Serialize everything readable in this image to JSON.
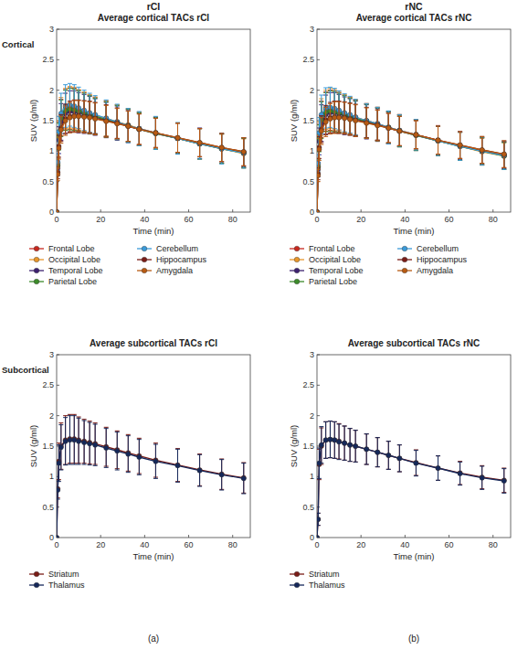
{
  "column_labels": [
    "rCI",
    "rNC"
  ],
  "row_labels": [
    "Cortical",
    "Subcortical"
  ],
  "panel_labels": [
    "(a)",
    "(b)"
  ],
  "chart_data": [
    {
      "type": "line",
      "title": "Average cortical TACs rCI",
      "x_label": "Time (min)",
      "y_label": "SUV (g/ml)",
      "xlim": [
        0,
        88
      ],
      "xticks": [
        0,
        20,
        40,
        60,
        80
      ],
      "ylim": [
        0,
        3
      ],
      "yticks": [
        0,
        0.5,
        1,
        1.5,
        2,
        2.5,
        3
      ],
      "grid": false,
      "legend": "bottom",
      "marker": "circle",
      "x": [
        0,
        0.5,
        1,
        2,
        4,
        6,
        8,
        10,
        12.5,
        15,
        17.5,
        22.5,
        27.5,
        32.5,
        37.5,
        45,
        55,
        65,
        75,
        85
      ],
      "series": [
        {
          "name": "Frontal Lobe",
          "color": "#c8281e",
          "values": [
            0,
            0.78,
            1.25,
            1.55,
            1.68,
            1.7,
            1.69,
            1.67,
            1.64,
            1.61,
            1.58,
            1.53,
            1.48,
            1.42,
            1.37,
            1.3,
            1.21,
            1.12,
            1.04,
            0.97
          ],
          "errors": [
            0,
            0.12,
            0.22,
            0.3,
            0.33,
            0.34,
            0.34,
            0.33,
            0.32,
            0.31,
            0.3,
            0.29,
            0.28,
            0.27,
            0.27,
            0.26,
            0.25,
            0.25,
            0.24,
            0.24
          ]
        },
        {
          "name": "Occipital Lobe",
          "color": "#e8962a",
          "values": [
            0,
            0.8,
            1.28,
            1.58,
            1.7,
            1.72,
            1.71,
            1.68,
            1.65,
            1.62,
            1.59,
            1.54,
            1.48,
            1.43,
            1.37,
            1.3,
            1.21,
            1.12,
            1.04,
            0.96
          ],
          "errors": [
            0,
            0.12,
            0.22,
            0.3,
            0.33,
            0.34,
            0.34,
            0.33,
            0.32,
            0.31,
            0.3,
            0.29,
            0.28,
            0.27,
            0.27,
            0.26,
            0.25,
            0.25,
            0.24,
            0.24
          ]
        },
        {
          "name": "Temporal Lobe",
          "color": "#3d2170",
          "values": [
            0,
            0.72,
            1.18,
            1.48,
            1.62,
            1.65,
            1.65,
            1.63,
            1.61,
            1.59,
            1.56,
            1.51,
            1.46,
            1.41,
            1.36,
            1.29,
            1.21,
            1.13,
            1.05,
            0.98
          ],
          "errors": [
            0,
            0.12,
            0.22,
            0.3,
            0.33,
            0.34,
            0.34,
            0.33,
            0.32,
            0.31,
            0.3,
            0.29,
            0.28,
            0.27,
            0.27,
            0.26,
            0.25,
            0.25,
            0.24,
            0.24
          ]
        },
        {
          "name": "Parietal Lobe",
          "color": "#3c8c2a",
          "values": [
            0,
            0.76,
            1.24,
            1.54,
            1.67,
            1.69,
            1.68,
            1.66,
            1.63,
            1.6,
            1.57,
            1.52,
            1.47,
            1.42,
            1.36,
            1.29,
            1.21,
            1.12,
            1.04,
            0.97
          ],
          "errors": [
            0,
            0.12,
            0.22,
            0.3,
            0.33,
            0.34,
            0.34,
            0.33,
            0.32,
            0.31,
            0.3,
            0.29,
            0.28,
            0.27,
            0.27,
            0.26,
            0.25,
            0.25,
            0.24,
            0.24
          ]
        },
        {
          "name": "Cerebellum",
          "color": "#3a9ad9",
          "values": [
            0,
            0.82,
            1.32,
            1.62,
            1.74,
            1.76,
            1.74,
            1.71,
            1.67,
            1.63,
            1.6,
            1.54,
            1.48,
            1.42,
            1.37,
            1.3,
            1.21,
            1.12,
            1.04,
            0.97
          ],
          "errors": [
            0,
            0.14,
            0.25,
            0.33,
            0.35,
            0.35,
            0.35,
            0.34,
            0.33,
            0.32,
            0.31,
            0.3,
            0.29,
            0.28,
            0.28,
            0.27,
            0.26,
            0.25,
            0.25,
            0.25
          ]
        },
        {
          "name": "Hippocampus",
          "color": "#7a1c16",
          "values": [
            0,
            0.65,
            1.08,
            1.38,
            1.53,
            1.57,
            1.58,
            1.58,
            1.57,
            1.56,
            1.54,
            1.5,
            1.46,
            1.41,
            1.36,
            1.3,
            1.22,
            1.14,
            1.06,
            0.99
          ],
          "errors": [
            0,
            0.1,
            0.18,
            0.22,
            0.24,
            0.25,
            0.26,
            0.26,
            0.26,
            0.26,
            0.26,
            0.26,
            0.25,
            0.25,
            0.25,
            0.24,
            0.24,
            0.23,
            0.23,
            0.23
          ]
        },
        {
          "name": "Amygdala",
          "color": "#b85a12",
          "values": [
            0,
            0.62,
            1.05,
            1.35,
            1.5,
            1.55,
            1.57,
            1.57,
            1.56,
            1.55,
            1.53,
            1.49,
            1.45,
            1.41,
            1.36,
            1.3,
            1.22,
            1.14,
            1.06,
            0.99
          ],
          "errors": [
            0,
            0.1,
            0.18,
            0.22,
            0.24,
            0.25,
            0.26,
            0.26,
            0.26,
            0.26,
            0.26,
            0.26,
            0.25,
            0.25,
            0.25,
            0.24,
            0.24,
            0.23,
            0.23,
            0.23
          ]
        }
      ]
    },
    {
      "type": "line",
      "title": "Average cortical TACs rNC",
      "x_label": "Time (min)",
      "y_label": "SUV (g/ml)",
      "xlim": [
        0,
        88
      ],
      "xticks": [
        0,
        20,
        40,
        60,
        80
      ],
      "ylim": [
        0,
        3
      ],
      "yticks": [
        0,
        0.5,
        1,
        1.5,
        2,
        2.5,
        3
      ],
      "grid": false,
      "legend": "bottom",
      "marker": "circle",
      "x": [
        0,
        0.5,
        1,
        2,
        4,
        6,
        8,
        10,
        12.5,
        15,
        17.5,
        22.5,
        27.5,
        32.5,
        37.5,
        45,
        55,
        65,
        75,
        85
      ],
      "series": [
        {
          "name": "Frontal Lobe",
          "color": "#c8281e",
          "values": [
            0,
            0.75,
            1.22,
            1.52,
            1.65,
            1.67,
            1.66,
            1.64,
            1.61,
            1.58,
            1.55,
            1.5,
            1.45,
            1.39,
            1.34,
            1.27,
            1.18,
            1.08,
            1.0,
            0.93
          ],
          "errors": [
            0,
            0.12,
            0.22,
            0.3,
            0.32,
            0.33,
            0.33,
            0.32,
            0.31,
            0.3,
            0.29,
            0.28,
            0.27,
            0.26,
            0.26,
            0.25,
            0.24,
            0.23,
            0.22,
            0.22
          ]
        },
        {
          "name": "Occipital Lobe",
          "color": "#e8962a",
          "values": [
            0,
            0.78,
            1.26,
            1.56,
            1.68,
            1.7,
            1.68,
            1.66,
            1.62,
            1.59,
            1.56,
            1.5,
            1.45,
            1.39,
            1.34,
            1.27,
            1.17,
            1.08,
            0.99,
            0.92
          ],
          "errors": [
            0,
            0.12,
            0.22,
            0.3,
            0.32,
            0.33,
            0.33,
            0.32,
            0.31,
            0.3,
            0.29,
            0.28,
            0.27,
            0.26,
            0.26,
            0.25,
            0.24,
            0.23,
            0.22,
            0.22
          ]
        },
        {
          "name": "Temporal Lobe",
          "color": "#3d2170",
          "values": [
            0,
            0.7,
            1.16,
            1.46,
            1.6,
            1.63,
            1.63,
            1.61,
            1.58,
            1.56,
            1.53,
            1.48,
            1.43,
            1.38,
            1.33,
            1.26,
            1.17,
            1.09,
            1.0,
            0.93
          ],
          "errors": [
            0,
            0.12,
            0.22,
            0.3,
            0.32,
            0.33,
            0.33,
            0.32,
            0.31,
            0.3,
            0.29,
            0.28,
            0.27,
            0.26,
            0.26,
            0.25,
            0.24,
            0.23,
            0.22,
            0.22
          ]
        },
        {
          "name": "Parietal Lobe",
          "color": "#3c8c2a",
          "values": [
            0,
            0.74,
            1.21,
            1.51,
            1.64,
            1.66,
            1.65,
            1.63,
            1.6,
            1.57,
            1.54,
            1.49,
            1.44,
            1.39,
            1.33,
            1.26,
            1.17,
            1.08,
            1.0,
            0.92
          ],
          "errors": [
            0,
            0.12,
            0.22,
            0.3,
            0.32,
            0.33,
            0.33,
            0.32,
            0.31,
            0.3,
            0.29,
            0.28,
            0.27,
            0.26,
            0.26,
            0.25,
            0.24,
            0.23,
            0.22,
            0.22
          ]
        },
        {
          "name": "Cerebellum",
          "color": "#3a9ad9",
          "values": [
            0,
            0.8,
            1.3,
            1.6,
            1.71,
            1.72,
            1.7,
            1.67,
            1.63,
            1.6,
            1.56,
            1.5,
            1.45,
            1.39,
            1.34,
            1.27,
            1.17,
            1.08,
            1.0,
            0.93
          ],
          "errors": [
            0,
            0.14,
            0.25,
            0.32,
            0.33,
            0.33,
            0.33,
            0.32,
            0.31,
            0.3,
            0.29,
            0.28,
            0.27,
            0.27,
            0.26,
            0.25,
            0.24,
            0.23,
            0.23,
            0.23
          ]
        },
        {
          "name": "Hippocampus",
          "color": "#7a1c16",
          "values": [
            0,
            0.63,
            1.06,
            1.36,
            1.51,
            1.55,
            1.56,
            1.56,
            1.55,
            1.53,
            1.51,
            1.47,
            1.43,
            1.38,
            1.33,
            1.27,
            1.18,
            1.1,
            1.02,
            0.95
          ],
          "errors": [
            0,
            0.1,
            0.18,
            0.22,
            0.24,
            0.25,
            0.26,
            0.26,
            0.26,
            0.26,
            0.26,
            0.25,
            0.25,
            0.24,
            0.24,
            0.23,
            0.23,
            0.22,
            0.22,
            0.22
          ]
        },
        {
          "name": "Amygdala",
          "color": "#b85a12",
          "values": [
            0,
            0.6,
            1.03,
            1.33,
            1.48,
            1.53,
            1.55,
            1.55,
            1.54,
            1.52,
            1.5,
            1.46,
            1.42,
            1.38,
            1.33,
            1.27,
            1.18,
            1.1,
            1.02,
            0.95
          ],
          "errors": [
            0,
            0.1,
            0.18,
            0.22,
            0.24,
            0.25,
            0.26,
            0.26,
            0.26,
            0.26,
            0.26,
            0.25,
            0.25,
            0.24,
            0.24,
            0.23,
            0.23,
            0.22,
            0.22,
            0.22
          ]
        }
      ]
    },
    {
      "type": "line",
      "title": "Average subcortical TACs rCI",
      "x_label": "Time (min)",
      "y_label": "SUV (g/ml)",
      "xlim": [
        0,
        88
      ],
      "xticks": [
        0,
        20,
        40,
        60,
        80
      ],
      "ylim": [
        0,
        3
      ],
      "yticks": [
        0,
        0.5,
        1,
        1.5,
        2,
        2.5,
        3
      ],
      "grid": false,
      "legend": "bottom",
      "marker": "circle",
      "x": [
        0,
        0.5,
        1,
        2,
        4,
        6,
        8,
        10,
        12.5,
        15,
        17.5,
        22.5,
        27.5,
        32.5,
        37.5,
        45,
        55,
        65,
        75,
        85
      ],
      "series": [
        {
          "name": "Striatum",
          "color": "#7a1c16",
          "values": [
            0,
            0.8,
            1.25,
            1.5,
            1.6,
            1.62,
            1.62,
            1.6,
            1.58,
            1.56,
            1.54,
            1.49,
            1.44,
            1.39,
            1.34,
            1.27,
            1.19,
            1.11,
            1.04,
            0.98
          ],
          "errors": [
            0,
            0.15,
            0.3,
            0.38,
            0.4,
            0.4,
            0.4,
            0.38,
            0.36,
            0.35,
            0.34,
            0.32,
            0.31,
            0.3,
            0.29,
            0.28,
            0.27,
            0.26,
            0.25,
            0.25
          ]
        },
        {
          "name": "Thalamus",
          "color": "#15285a",
          "values": [
            0,
            0.78,
            1.22,
            1.48,
            1.58,
            1.6,
            1.6,
            1.58,
            1.56,
            1.54,
            1.52,
            1.47,
            1.42,
            1.37,
            1.32,
            1.25,
            1.18,
            1.1,
            1.03,
            0.97
          ],
          "errors": [
            0,
            0.15,
            0.3,
            0.37,
            0.39,
            0.4,
            0.4,
            0.38,
            0.36,
            0.35,
            0.34,
            0.32,
            0.31,
            0.3,
            0.29,
            0.28,
            0.27,
            0.26,
            0.25,
            0.25
          ]
        }
      ]
    },
    {
      "type": "line",
      "title": "Average subcortical TACs rNC",
      "x_label": "Time (min)",
      "y_label": "SUV (g/ml)",
      "xlim": [
        0,
        88
      ],
      "xticks": [
        0,
        20,
        40,
        60,
        80
      ],
      "ylim": [
        0,
        3
      ],
      "yticks": [
        0,
        0.5,
        1,
        1.5,
        2,
        2.5,
        3
      ],
      "grid": false,
      "legend": "bottom",
      "marker": "circle",
      "x": [
        0,
        0.5,
        1,
        2,
        4,
        6,
        8,
        10,
        12.5,
        15,
        17.5,
        22.5,
        27.5,
        32.5,
        37.5,
        45,
        55,
        65,
        75,
        85
      ],
      "series": [
        {
          "name": "Striatum",
          "color": "#7a1c16",
          "values": [
            0,
            0.3,
            1.2,
            1.5,
            1.6,
            1.61,
            1.6,
            1.58,
            1.55,
            1.52,
            1.5,
            1.45,
            1.4,
            1.35,
            1.3,
            1.23,
            1.14,
            1.06,
            0.99,
            0.94
          ],
          "errors": [
            0,
            0.1,
            0.25,
            0.3,
            0.3,
            0.3,
            0.3,
            0.29,
            0.28,
            0.27,
            0.26,
            0.25,
            0.24,
            0.23,
            0.22,
            0.21,
            0.2,
            0.19,
            0.19,
            0.2
          ]
        },
        {
          "name": "Thalamus",
          "color": "#15285a",
          "values": [
            0,
            0.3,
            1.22,
            1.52,
            1.6,
            1.61,
            1.6,
            1.57,
            1.55,
            1.52,
            1.5,
            1.45,
            1.4,
            1.35,
            1.3,
            1.22,
            1.14,
            1.05,
            0.98,
            0.93
          ],
          "errors": [
            0,
            0.1,
            0.25,
            0.3,
            0.3,
            0.3,
            0.3,
            0.29,
            0.28,
            0.27,
            0.26,
            0.25,
            0.24,
            0.23,
            0.22,
            0.21,
            0.2,
            0.19,
            0.19,
            0.2
          ]
        }
      ]
    }
  ]
}
